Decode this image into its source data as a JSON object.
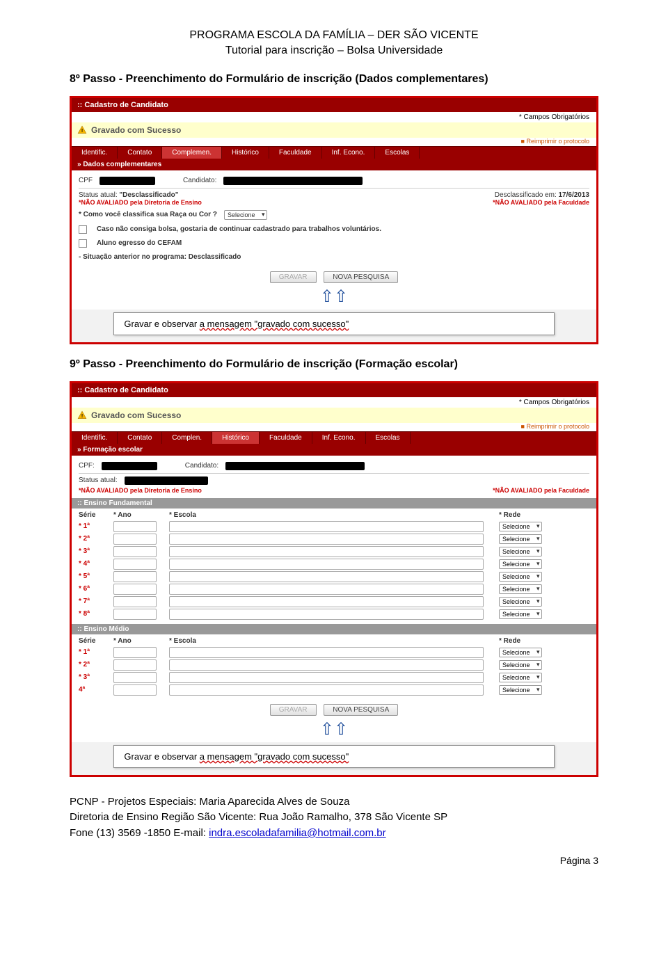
{
  "header": {
    "line1": "PROGRAMA ESCOLA DA FAMÍLIA – DER SÃO VICENTE",
    "line2": "Tutorial para inscrição – Bolsa Universidade"
  },
  "step8": {
    "title": "8º Passo - Preenchimento do Formulário de inscrição (Dados complementares)",
    "panel_title": ":: Cadastro de Candidato",
    "campos_label": "* Campos Obrigatórios",
    "success": "Gravado com Sucesso",
    "reimprimir": "Reimprimir o protocolo",
    "tabs": [
      "Identific.",
      "Contato",
      "Complemen.",
      "Histórico",
      "Faculdade",
      "Inf. Econo.",
      "Escolas"
    ],
    "active_tab": 2,
    "section": "» Dados complementares",
    "cpf_label": "CPF",
    "candidato_label": "Candidato:",
    "status_label": "Status atual:",
    "status_value": "\"Desclassificado\"",
    "desclass_label": "Desclassificado em:",
    "desclass_value": "17/6/2013",
    "nao_avaliado_dir": "*NÃO AVALIADO pela Diretoria de Ensino",
    "nao_avaliado_fac": "*NÃO AVALIADO pela Faculdade",
    "raca_label": "* Como você classifica sua Raça ou Cor ?",
    "raca_select": "Selecione",
    "bolsa_text": "Caso não consiga bolsa, gostaria de continuar cadastrado para trabalhos voluntários.",
    "cefam_text": "Aluno egresso do CEFAM",
    "situacao_text": "- Situação anterior no programa: Desclassificado",
    "btn_gravar": "GRAVAR",
    "btn_nova": "NOVA PESQUISA",
    "callout_prefix": "Gravar e observar ",
    "callout_wavy": "a mensagem \"gravado com sucesso\""
  },
  "step9": {
    "title": "9º Passo - Preenchimento do Formulário de inscrição (Formação escolar)",
    "panel_title": ":: Cadastro de Candidato",
    "campos_label": "* Campos Obrigatórios",
    "success": "Gravado com Sucesso",
    "reimprimir": "Reimprimir o protocolo",
    "tabs": [
      "Identific.",
      "Contato",
      "Complen.",
      "Histórico",
      "Faculdade",
      "Inf. Econo.",
      "Escolas"
    ],
    "active_tab": 3,
    "section": "» Formação escolar",
    "cpf_label": "CPF:",
    "candidato_label": "Candidato:",
    "status_label": "Status atual:",
    "nao_avaliado_dir": "*NÃO AVALIADO pela Diretoria de Ensino",
    "nao_avaliado_fac": "*NÃO AVALIADO pela Faculdade",
    "fundamental": ":: Ensino Fundamental",
    "medio": ":: Ensino Médio",
    "col_serie": "Série",
    "col_ano": "* Ano",
    "col_escola": "* Escola",
    "col_rede": "* Rede",
    "fund_rows": [
      "* 1ª",
      "* 2ª",
      "* 3ª",
      "* 4ª",
      "* 5ª",
      "* 6ª",
      "* 7ª",
      "* 8ª"
    ],
    "medio_rows": [
      "* 1ª",
      "* 2ª",
      "* 3ª",
      "4ª"
    ],
    "rede_select": "Selecione",
    "btn_gravar": "GRAVAR",
    "btn_nova": "NOVA PESQUISA",
    "callout_prefix": "Gravar e observar ",
    "callout_wavy": "a mensagem \"gravado com sucesso\""
  },
  "footer": {
    "line1": "PCNP - Projetos Especiais: Maria Aparecida Alves de Souza",
    "line2_pre": "Diretoria de Ensino Região São Vicente: Rua João Ramalho, 378 São Vicente SP",
    "line3_pre": "Fone (13) 3569 -1850 E-mail: ",
    "email": "indra.escoladafamilia@hotmail.com.br",
    "page": "Página 3"
  }
}
